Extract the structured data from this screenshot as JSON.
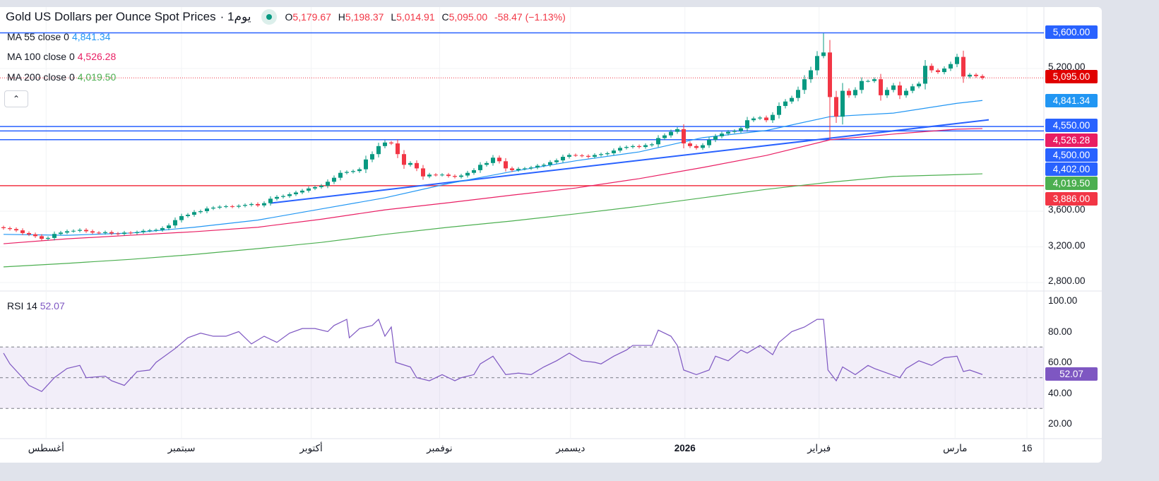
{
  "header": {
    "title": "Gold US Dollars per Ounce Spot Prices",
    "interval": "· 1يوم",
    "ohlc": {
      "o_label": "O",
      "o": "5,179.67",
      "h_label": "H",
      "h": "5,198.37",
      "l_label": "L",
      "l": "5,014.91",
      "c_label": "C",
      "c": "5,095.00",
      "change": "-58.47 (−1.13%)"
    },
    "collapse_icon": "chevron-up-icon"
  },
  "legend": [
    {
      "label": "MA  55 close 0",
      "value": "4,841.34",
      "color": "#2196f3"
    },
    {
      "label": "MA  100 close 0",
      "value": "4,526.28",
      "color": "#e91e63"
    },
    {
      "label": "MA  200 close 0",
      "value": "4,019.50",
      "color": "#4caf50"
    }
  ],
  "rsi_legend": {
    "label": "RSI  14",
    "value": "52.07",
    "color": "#7e57c2"
  },
  "colors": {
    "up": "#089981",
    "down": "#f23645",
    "hline": "#2962ff",
    "redline": "#f23645",
    "rsi": "#7e57c2"
  },
  "chart_data": {
    "type": "candlestick",
    "title": "Gold US Dollars per Ounce Spot Prices",
    "price_axis": {
      "ticks": [
        "5,200.00",
        "3,600.00",
        "3,200.00",
        "2,800.00"
      ],
      "tick_values": [
        5200,
        3600,
        3200,
        2800
      ]
    },
    "price_labels": [
      {
        "text": "5,600.00",
        "color": "#2962ff"
      },
      {
        "text": "5,095.00",
        "color": "#e00000"
      },
      {
        "text": "4,841.34",
        "color": "#2196f3"
      },
      {
        "text": "4,550.00",
        "color": "#2962ff"
      },
      {
        "text": "4,526.28",
        "color": "#e91e63"
      },
      {
        "text": "4,500.00",
        "color": "#2962ff"
      },
      {
        "text": "4,402.00",
        "color": "#2962ff"
      },
      {
        "text": "4,019.50",
        "color": "#4caf50"
      },
      {
        "text": "3,886.00",
        "color": "#f23645"
      }
    ],
    "x_axis": {
      "ticks": [
        {
          "label": "أغسطس",
          "index": 6.7
        },
        {
          "label": "سبتمبر",
          "index": 28
        },
        {
          "label": "أكتوبر",
          "index": 48.4
        },
        {
          "label": "نوفمبر",
          "index": 68.6
        },
        {
          "label": "ديسمبر",
          "index": 89.2
        },
        {
          "label": "2026",
          "index": 107.2
        },
        {
          "label": "فبراير",
          "index": 128.3
        },
        {
          "label": "مارس",
          "index": 149.7
        },
        {
          "label": "16",
          "index": 161
        }
      ]
    },
    "closes": [
      3410,
      3400,
      3385,
      3355,
      3340,
      3320,
      3290,
      3300,
      3345,
      3360,
      3375,
      3380,
      3390,
      3375,
      3360,
      3355,
      3365,
      3350,
      3345,
      3360,
      3355,
      3365,
      3380,
      3385,
      3390,
      3410,
      3440,
      3500,
      3545,
      3560,
      3590,
      3600,
      3630,
      3640,
      3650,
      3655,
      3650,
      3660,
      3670,
      3680,
      3665,
      3690,
      3740,
      3760,
      3770,
      3790,
      3810,
      3830,
      3855,
      3870,
      3885,
      3930,
      3975,
      4030,
      4040,
      4050,
      4070,
      4180,
      4240,
      4330,
      4370,
      4360,
      4240,
      4120,
      4140,
      4080,
      3990,
      4010,
      4005,
      4010,
      3995,
      3985,
      4000,
      4030,
      4060,
      4120,
      4140,
      4200,
      4160,
      4080,
      4060,
      4075,
      4080,
      4090,
      4110,
      4120,
      4150,
      4170,
      4210,
      4230,
      4225,
      4220,
      4210,
      4230,
      4240,
      4250,
      4280,
      4310,
      4320,
      4330,
      4320,
      4340,
      4350,
      4420,
      4450,
      4490,
      4520,
      4360,
      4330,
      4310,
      4340,
      4400,
      4440,
      4470,
      4490,
      4500,
      4530,
      4620,
      4640,
      4650,
      4620,
      4680,
      4780,
      4830,
      4870,
      4960,
      5080,
      5180,
      5340,
      5380,
      4880,
      4660,
      4950,
      4900,
      4960,
      5060,
      5060,
      5080,
      4900,
      4960,
      5010,
      4900,
      4950,
      5000,
      5030,
      5230,
      5180,
      5160,
      5200,
      5250,
      5330,
      5110,
      5130,
      5115,
      5095
    ],
    "wick_extremes": [
      {
        "index": 129,
        "high": 5595
      },
      {
        "index": 130,
        "low": 4402
      }
    ],
    "ma_sample_indices": [
      0,
      10,
      20,
      30,
      40,
      50,
      60,
      70,
      80,
      90,
      100,
      110,
      120,
      130,
      140,
      150,
      154
    ],
    "ma55": [
      3340,
      3330,
      3355,
      3420,
      3500,
      3625,
      3750,
      3910,
      4045,
      4165,
      4265,
      4425,
      4505,
      4660,
      4700,
      4810,
      4841.34
    ],
    "ma100": [
      3235,
      3290,
      3330,
      3370,
      3420,
      3510,
      3615,
      3695,
      3780,
      3860,
      3965,
      4090,
      4225,
      4400,
      4465,
      4520,
      4526.28
    ],
    "ma200": [
      2975,
      3015,
      3060,
      3115,
      3180,
      3250,
      3340,
      3420,
      3490,
      3570,
      3655,
      3750,
      3845,
      3925,
      3990,
      4010,
      4019.5
    ],
    "horizontal_lines": [
      {
        "price": 5600,
        "color": "#2962ff"
      },
      {
        "price": 4550,
        "color": "#2962ff"
      },
      {
        "price": 4500,
        "color": "#2962ff"
      },
      {
        "price": 4402,
        "color": "#2962ff"
      },
      {
        "price": 3886,
        "color": "#f23645"
      }
    ],
    "trendline": {
      "from": {
        "index": 42,
        "price": 3690
      },
      "to": {
        "index": 155,
        "price": 4625
      }
    },
    "rsi": {
      "period": 14,
      "last": 52.07,
      "range": [
        0,
        100
      ],
      "bands": [
        30,
        50,
        70
      ],
      "ticks": [
        "100.00",
        "80.00",
        "60.00",
        "40.00",
        "20.00"
      ],
      "tick_values": [
        100,
        80,
        60,
        40,
        20
      ],
      "points": [
        [
          0,
          66
        ],
        [
          1,
          59
        ],
        [
          3,
          50
        ],
        [
          4,
          45
        ],
        [
          6,
          41
        ],
        [
          8,
          50
        ],
        [
          10,
          56
        ],
        [
          12,
          58
        ],
        [
          13,
          50
        ],
        [
          16,
          51
        ],
        [
          17,
          48
        ],
        [
          19,
          45
        ],
        [
          21,
          54
        ],
        [
          23,
          55
        ],
        [
          24,
          60
        ],
        [
          27,
          69
        ],
        [
          29,
          76
        ],
        [
          31,
          79
        ],
        [
          33,
          77
        ],
        [
          35,
          77
        ],
        [
          37,
          80
        ],
        [
          39,
          72
        ],
        [
          41,
          77
        ],
        [
          43,
          73
        ],
        [
          45,
          79
        ],
        [
          47,
          82
        ],
        [
          49,
          82
        ],
        [
          51,
          80
        ],
        [
          52,
          84
        ],
        [
          54,
          88
        ],
        [
          54.4,
          76
        ],
        [
          56,
          82
        ],
        [
          58,
          84
        ],
        [
          59,
          88
        ],
        [
          60,
          77
        ],
        [
          61,
          83
        ],
        [
          61.7,
          60
        ],
        [
          64,
          57
        ],
        [
          65,
          50
        ],
        [
          67,
          48
        ],
        [
          69,
          52
        ],
        [
          71,
          48
        ],
        [
          72,
          50
        ],
        [
          74,
          52
        ],
        [
          75,
          59
        ],
        [
          77,
          64
        ],
        [
          79,
          52
        ],
        [
          81,
          53
        ],
        [
          83,
          52
        ],
        [
          85,
          57
        ],
        [
          87,
          61
        ],
        [
          89,
          66
        ],
        [
          91,
          61
        ],
        [
          93,
          60
        ],
        [
          94,
          59
        ],
        [
          96,
          64
        ],
        [
          98,
          68
        ],
        [
          99,
          71
        ],
        [
          102,
          71
        ],
        [
          103,
          81
        ],
        [
          105,
          77
        ],
        [
          106,
          71
        ],
        [
          107,
          55
        ],
        [
          109,
          52
        ],
        [
          111,
          55
        ],
        [
          112,
          64
        ],
        [
          114,
          61
        ],
        [
          116,
          68
        ],
        [
          117,
          66
        ],
        [
          119,
          71
        ],
        [
          121,
          65
        ],
        [
          122,
          73
        ],
        [
          124,
          80
        ],
        [
          126,
          83
        ],
        [
          128,
          88
        ],
        [
          129,
          88
        ],
        [
          129.7,
          55
        ],
        [
          131,
          48
        ],
        [
          132,
          57
        ],
        [
          134,
          52
        ],
        [
          136,
          58
        ],
        [
          137,
          56
        ],
        [
          139,
          53
        ],
        [
          141,
          50
        ],
        [
          142,
          56
        ],
        [
          144,
          61
        ],
        [
          146,
          58
        ],
        [
          148,
          63
        ],
        [
          150,
          64
        ],
        [
          151,
          54
        ],
        [
          152,
          55
        ],
        [
          154,
          52.07
        ]
      ]
    }
  }
}
